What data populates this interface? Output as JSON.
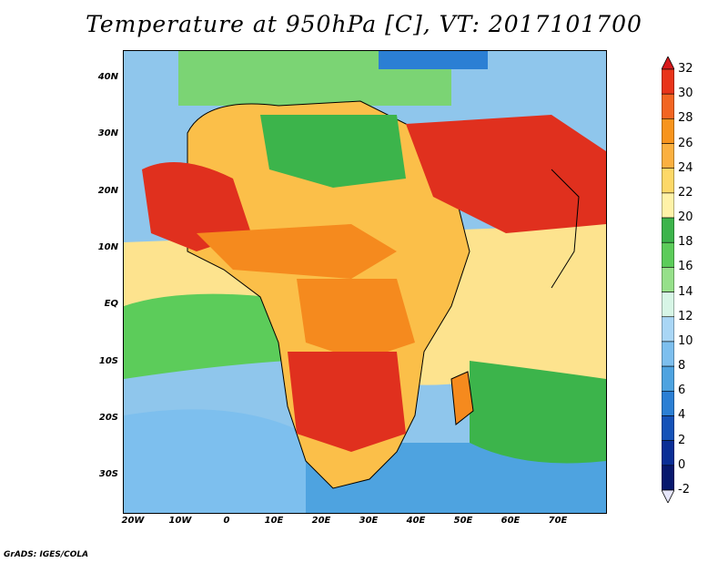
{
  "title": "Temperature at 950hPa [C], VT: 2017101700",
  "footer": "GrADS: IGES/COLA",
  "map": {
    "region": "Africa and Arabian Peninsula",
    "variable": "Temperature at 950hPa",
    "units": "C",
    "lat_labels": [
      "40N",
      "30N",
      "20N",
      "10N",
      "EQ",
      "10S",
      "20S",
      "30S"
    ],
    "lon_labels": [
      "20W",
      "10W",
      "0",
      "10E",
      "20E",
      "30E",
      "40E",
      "50E",
      "60E",
      "70E"
    ],
    "lon_range": [
      -22,
      80
    ],
    "lat_range": [
      -36,
      45
    ]
  },
  "colorbar": {
    "labels": [
      "32",
      "30",
      "28",
      "26",
      "24",
      "22",
      "20",
      "18",
      "16",
      "14",
      "12",
      "10",
      "8",
      "6",
      "4",
      "2",
      "0",
      "-2"
    ],
    "colors": [
      "#d7191c",
      "#e8341a",
      "#f26522",
      "#f7941d",
      "#fbb040",
      "#fdd868",
      "#fff2a8",
      "#3cb44b",
      "#5ccc5a",
      "#96e08a",
      "#d7f5e6",
      "#a9d6f5",
      "#7dbfee",
      "#4ea3e0",
      "#2b7fd4",
      "#1452b8",
      "#0a2e96",
      "#07186e"
    ],
    "over_color": "#d7191c",
    "under_color": "#e6e6fa"
  },
  "palette": {
    "hot": "#e0301e",
    "warm": "#f58a1e",
    "mild": "#fbbf49",
    "pale": "#fde38e",
    "green": "#3cb44b",
    "lightgreen": "#7bd474",
    "ocean_cool": "#8fc6ec",
    "ocean_cold": "#4ea3e0"
  }
}
